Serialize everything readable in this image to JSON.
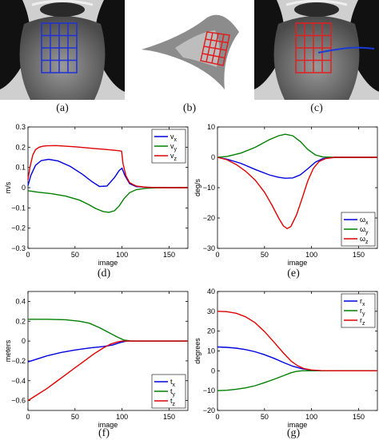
{
  "photos": [
    {
      "caption": "(a)",
      "grid_color": "#2030d8"
    },
    {
      "caption": "(b)",
      "grid_color": "#e02020"
    },
    {
      "caption": "(c)",
      "grid_color": "#e02020",
      "trajectory_color": "#1a3ad8"
    }
  ],
  "chart_data": [
    {
      "type": "line",
      "caption": "(d)",
      "xlabel": "image",
      "ylabel": "m/s",
      "xlim": [
        0,
        170
      ],
      "ylim": [
        -0.3,
        0.3
      ],
      "xticks": [
        0,
        50,
        100,
        150
      ],
      "yticks": [
        -0.3,
        -0.2,
        -0.1,
        0,
        0.1,
        0.2,
        0.3
      ],
      "ytick_labels": [
        "−0.3",
        "−0.2",
        "−0.1",
        "0",
        "0.1",
        "0.2",
        "0.3"
      ],
      "legend_position": "top-right",
      "series": [
        {
          "name": "v",
          "sub": "x",
          "color": "#0000e0",
          "x": [
            0,
            3,
            8,
            14,
            22,
            32,
            45,
            58,
            68,
            76,
            84,
            92,
            97,
            100,
            103,
            108,
            115,
            130,
            150,
            170
          ],
          "y": [
            0.01,
            0.06,
            0.11,
            0.134,
            0.14,
            0.132,
            0.105,
            0.066,
            0.03,
            0.006,
            0.008,
            0.05,
            0.085,
            0.096,
            0.06,
            0.02,
            0.005,
            0.001,
            0,
            0
          ]
        },
        {
          "name": "v",
          "sub": "y",
          "color": "#008000",
          "x": [
            0,
            10,
            25,
            40,
            55,
            65,
            72,
            80,
            86,
            92,
            97,
            102,
            108,
            115,
            125,
            140,
            170
          ],
          "y": [
            -0.015,
            -0.022,
            -0.03,
            -0.042,
            -0.062,
            -0.085,
            -0.103,
            -0.118,
            -0.122,
            -0.114,
            -0.09,
            -0.055,
            -0.025,
            -0.01,
            -0.003,
            0,
            0
          ]
        },
        {
          "name": "v",
          "sub": "z",
          "color": "#e00000",
          "x": [
            0,
            2,
            5,
            8,
            12,
            16,
            20,
            30,
            50,
            70,
            90,
            98,
            99.5,
            101,
            104,
            108,
            115,
            125,
            140,
            170
          ],
          "y": [
            0.04,
            0.1,
            0.16,
            0.188,
            0.2,
            0.205,
            0.207,
            0.208,
            0.202,
            0.194,
            0.186,
            0.182,
            0.18,
            0.12,
            0.06,
            0.025,
            0.008,
            0.002,
            0,
            0
          ]
        }
      ]
    },
    {
      "type": "line",
      "caption": "(e)",
      "xlabel": "image",
      "ylabel": "deg/s",
      "xlim": [
        0,
        170
      ],
      "ylim": [
        -30,
        10
      ],
      "xticks": [
        0,
        50,
        100,
        150
      ],
      "yticks": [
        -30,
        -20,
        -10,
        0,
        10
      ],
      "ytick_labels": [
        "−30",
        "−20",
        "−10",
        "0",
        "10"
      ],
      "legend_position": "bottom-right",
      "series": [
        {
          "name": "ω",
          "sub": "x",
          "color": "#0000e0",
          "x": [
            0,
            10,
            25,
            40,
            55,
            65,
            72,
            80,
            88,
            96,
            104,
            112,
            125,
            145,
            170
          ],
          "y": [
            0,
            -0.6,
            -2,
            -4,
            -5.8,
            -6.6,
            -6.9,
            -6.8,
            -5.8,
            -3.8,
            -1.6,
            -0.4,
            0,
            0,
            0
          ]
        },
        {
          "name": "ω",
          "sub": "y",
          "color": "#008000",
          "x": [
            0,
            10,
            25,
            40,
            55,
            65,
            72,
            80,
            88,
            96,
            104,
            112,
            125,
            145,
            170
          ],
          "y": [
            0,
            0.3,
            1.4,
            3.3,
            5.8,
            7.1,
            7.6,
            7.1,
            5.2,
            2.6,
            0.8,
            0.1,
            0,
            0,
            0
          ]
        },
        {
          "name": "ω",
          "sub": "z",
          "color": "#e00000",
          "x": [
            0,
            10,
            20,
            30,
            40,
            50,
            58,
            65,
            70,
            74,
            78,
            84,
            90,
            96,
            102,
            108,
            115,
            125,
            140,
            170
          ],
          "y": [
            0,
            -0.8,
            -2.4,
            -4.6,
            -7.5,
            -11.5,
            -15.8,
            -20,
            -22.6,
            -23.5,
            -22.8,
            -19,
            -13.5,
            -7.8,
            -3.6,
            -1.4,
            -0.4,
            0,
            0,
            0
          ]
        }
      ]
    },
    {
      "type": "line",
      "caption": "(f)",
      "xlabel": "image",
      "ylabel": "meters",
      "xlim": [
        0,
        170
      ],
      "ylim": [
        -0.7,
        0.5
      ],
      "xticks": [
        0,
        50,
        100,
        150
      ],
      "yticks": [
        -0.6,
        -0.4,
        -0.2,
        0,
        0.2,
        0.4
      ],
      "ytick_labels": [
        "−0.6",
        "−0.4",
        "−0.2",
        "0",
        "0.2",
        "0.4"
      ],
      "legend_position": "bottom-right",
      "series": [
        {
          "name": "t",
          "sub": "x",
          "color": "#0000e0",
          "x": [
            0,
            10,
            20,
            35,
            50,
            65,
            80,
            90,
            98,
            105,
            115,
            130,
            170
          ],
          "y": [
            -0.21,
            -0.18,
            -0.15,
            -0.115,
            -0.09,
            -0.07,
            -0.055,
            -0.04,
            -0.015,
            0,
            0,
            0,
            0
          ]
        },
        {
          "name": "t",
          "sub": "y",
          "color": "#008000",
          "x": [
            0,
            20,
            40,
            55,
            65,
            75,
            85,
            95,
            102,
            110,
            120,
            170
          ],
          "y": [
            0.22,
            0.22,
            0.215,
            0.2,
            0.18,
            0.14,
            0.09,
            0.04,
            0.01,
            0,
            0,
            0
          ]
        },
        {
          "name": "t",
          "sub": "z",
          "color": "#e00000",
          "x": [
            0,
            10,
            20,
            30,
            40,
            50,
            60,
            70,
            80,
            88,
            95,
            100,
            105,
            115,
            170
          ],
          "y": [
            -0.6,
            -0.54,
            -0.48,
            -0.41,
            -0.34,
            -0.27,
            -0.2,
            -0.13,
            -0.07,
            -0.03,
            -0.01,
            0,
            0,
            0,
            0
          ]
        }
      ]
    },
    {
      "type": "line",
      "caption": "(g)",
      "xlabel": "image",
      "ylabel": "degrees",
      "xlim": [
        0,
        170
      ],
      "ylim": [
        -20,
        40
      ],
      "xticks": [
        0,
        50,
        100,
        150
      ],
      "yticks": [
        -20,
        -10,
        0,
        10,
        20,
        30,
        40
      ],
      "ytick_labels": [
        "−20",
        "−10",
        "0",
        "10",
        "20",
        "30",
        "40"
      ],
      "legend_position": "top-right",
      "series": [
        {
          "name": "r",
          "sub": "x",
          "color": "#0000e0",
          "x": [
            0,
            10,
            20,
            30,
            40,
            50,
            60,
            70,
            80,
            90,
            100,
            110,
            125,
            170
          ],
          "y": [
            12,
            11.8,
            11.4,
            10.7,
            9.6,
            8.1,
            6.3,
            4.2,
            2.3,
            1,
            0.3,
            0,
            0,
            0
          ]
        },
        {
          "name": "r",
          "sub": "y",
          "color": "#008000",
          "x": [
            0,
            10,
            20,
            30,
            40,
            50,
            60,
            70,
            78,
            84,
            90,
            100,
            115,
            170
          ],
          "y": [
            -10,
            -9.8,
            -9.3,
            -8.6,
            -7.5,
            -6,
            -4.3,
            -2.5,
            -1,
            -0.3,
            0,
            0,
            0,
            0
          ]
        },
        {
          "name": "r",
          "sub": "z",
          "color": "#e00000",
          "x": [
            0,
            10,
            20,
            30,
            40,
            50,
            60,
            70,
            78,
            85,
            92,
            100,
            110,
            125,
            170
          ],
          "y": [
            30,
            29.8,
            29,
            27.2,
            24.2,
            19.8,
            14.5,
            9,
            5,
            2.6,
            1.1,
            0.4,
            0.1,
            0,
            0
          ]
        }
      ]
    }
  ]
}
